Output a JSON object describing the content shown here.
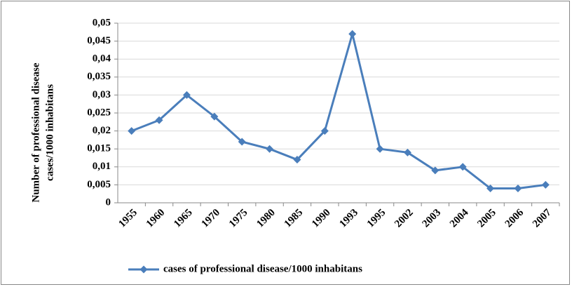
{
  "chart_data": {
    "type": "line",
    "ylabel": [
      "Number of professional disease",
      "cases/1000 inhabitans"
    ],
    "categories": [
      "1955",
      "1960",
      "1965",
      "1970",
      "1975",
      "1980",
      "1985",
      "1990",
      "1993",
      "1995",
      "2002",
      "2003",
      "2004",
      "2005",
      "2006",
      "2007"
    ],
    "series": [
      {
        "name": "cases of professional disease/1000 inhabitans",
        "color": "#4a7ebb",
        "values": [
          0.02,
          0.023,
          0.03,
          0.024,
          0.017,
          0.015,
          0.012,
          0.02,
          0.047,
          0.015,
          0.014,
          0.009,
          0.01,
          0.004,
          0.004,
          0.005
        ]
      }
    ],
    "ylim": [
      0,
      0.05
    ],
    "yticks": [
      0,
      {
        "value": 0.005,
        "label": "0,005"
      },
      {
        "value": 0.01,
        "label": "0,01"
      },
      {
        "value": 0.015,
        "label": "0,015"
      },
      {
        "value": 0.02,
        "label": "0,02"
      },
      {
        "value": 0.025,
        "label": "0,025"
      },
      {
        "value": 0.03,
        "label": "0,03"
      },
      {
        "value": 0.035,
        "label": "0,035"
      },
      {
        "value": 0.04,
        "label": "0,04"
      },
      {
        "value": 0.045,
        "label": "0,045"
      },
      {
        "value": 0.05,
        "label": "0,05"
      }
    ],
    "grid": true,
    "legend": "bottom"
  }
}
